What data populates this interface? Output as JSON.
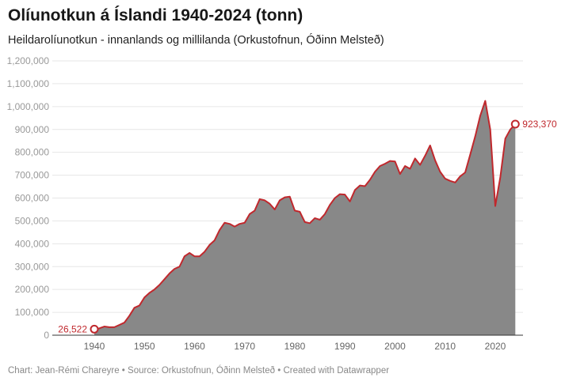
{
  "chart_data": {
    "type": "area",
    "title": "Olíunotkun á Íslandi 1940-2024 (tonn)",
    "subtitle": "Heildarolíunotkun - innanlands og millilanda (Orkustofnun, Óðinn Melsteð)",
    "xlabel": "",
    "ylabel": "",
    "ylim": [
      0,
      1200000
    ],
    "xlim": [
      1933,
      2025
    ],
    "yticks": [
      0,
      100000,
      200000,
      300000,
      400000,
      500000,
      600000,
      700000,
      800000,
      900000,
      1000000,
      1100000,
      1200000
    ],
    "ytick_labels": [
      "0",
      "100,000",
      "200,000",
      "300,000",
      "400,000",
      "500,000",
      "600,000",
      "700,000",
      "800,000",
      "900,000",
      "1,000,000",
      "1,100,000",
      "1,200,000"
    ],
    "xticks": [
      1940,
      1950,
      1960,
      1970,
      1980,
      1990,
      2000,
      2010,
      2020
    ],
    "xtick_labels": [
      "1940",
      "1950",
      "1960",
      "1970",
      "1980",
      "1990",
      "2000",
      "2010",
      "2020"
    ],
    "grid": true,
    "line_color": "#c0282d",
    "fill_color": "#888888",
    "x": [
      1940,
      1941,
      1942,
      1943,
      1944,
      1945,
      1946,
      1947,
      1948,
      1949,
      1950,
      1951,
      1952,
      1953,
      1954,
      1955,
      1956,
      1957,
      1958,
      1959,
      1960,
      1961,
      1962,
      1963,
      1964,
      1965,
      1966,
      1967,
      1968,
      1969,
      1970,
      1971,
      1972,
      1973,
      1974,
      1975,
      1976,
      1977,
      1978,
      1979,
      1980,
      1981,
      1982,
      1983,
      1984,
      1985,
      1986,
      1987,
      1988,
      1989,
      1990,
      1991,
      1992,
      1993,
      1994,
      1995,
      1996,
      1997,
      1998,
      1999,
      2000,
      2001,
      2002,
      2003,
      2004,
      2005,
      2006,
      2007,
      2008,
      2009,
      2010,
      2011,
      2012,
      2013,
      2014,
      2015,
      2016,
      2017,
      2018,
      2019,
      2020,
      2021,
      2022,
      2023,
      2024
    ],
    "values": [
      26522,
      30000,
      38000,
      35000,
      35000,
      45000,
      55000,
      85000,
      120000,
      130000,
      165000,
      185000,
      200000,
      220000,
      245000,
      270000,
      290000,
      300000,
      345000,
      360000,
      345000,
      345000,
      365000,
      395000,
      415000,
      460000,
      492000,
      487000,
      475000,
      487000,
      492000,
      530000,
      545000,
      595000,
      590000,
      575000,
      550000,
      590000,
      603000,
      606000,
      545000,
      540000,
      495000,
      490000,
      512000,
      505000,
      530000,
      570000,
      600000,
      617000,
      615000,
      585000,
      635000,
      655000,
      652000,
      680000,
      715000,
      740000,
      750000,
      762000,
      760000,
      705000,
      740000,
      728000,
      773000,
      745000,
      785000,
      830000,
      765000,
      715000,
      685000,
      675000,
      668000,
      695000,
      712000,
      790000,
      870000,
      960000,
      1025000,
      900000,
      565000,
      690000,
      860000,
      900000,
      923370
    ],
    "annotations": [
      {
        "x": 1940,
        "label": "26,522"
      },
      {
        "x": 2024,
        "label": "923,370"
      }
    ]
  },
  "footer": "Chart: Jean-Rémi Chareyre • Source: Orkustofnun, Óðinn Melsteð • Created with Datawrapper"
}
